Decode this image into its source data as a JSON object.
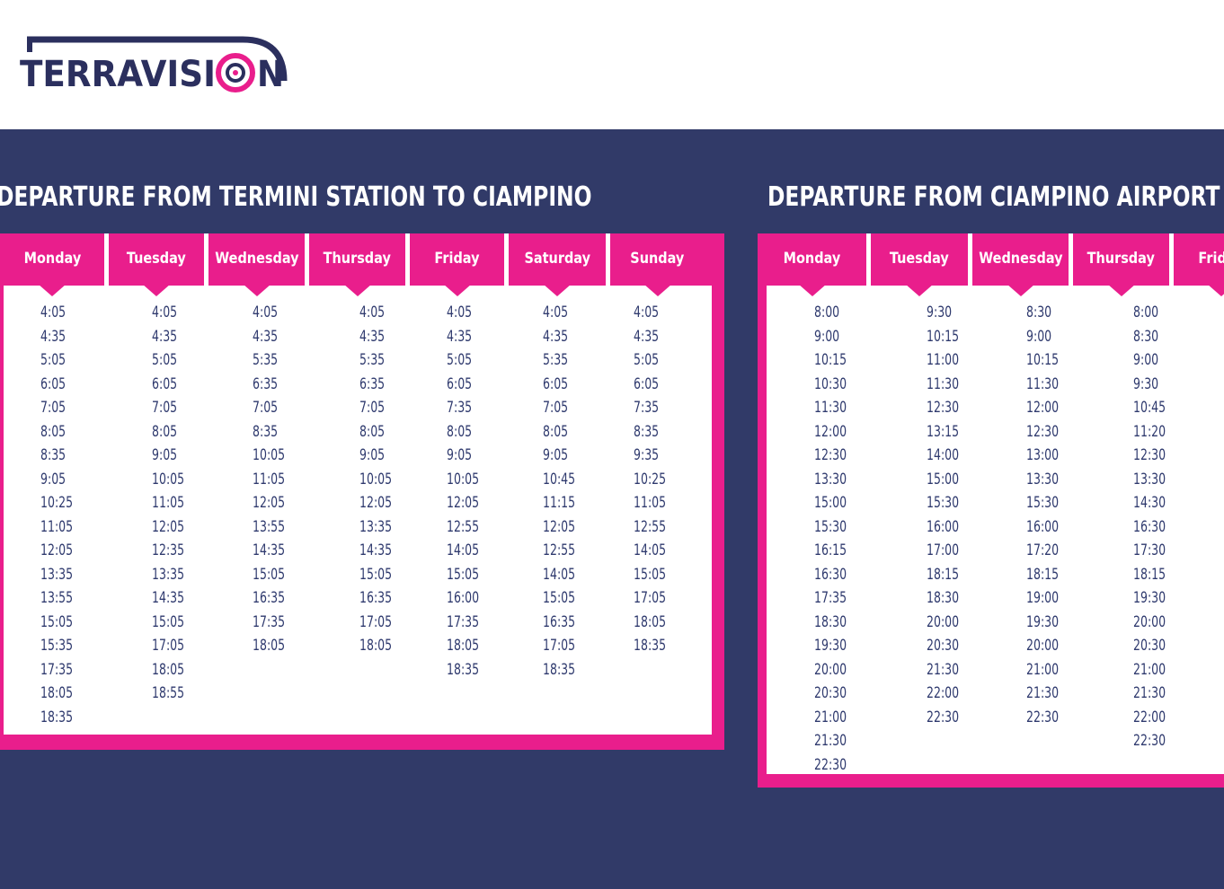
{
  "brand": {
    "name": "TERRAVISION",
    "navy": "#2b2f5e",
    "pink": "#e91e8c",
    "background_dark": "#313a68"
  },
  "sections": [
    {
      "title": "DEPARTURE FROM TERMINI STATION TO CIAMPINO",
      "days": [
        {
          "label": "Monday",
          "times": [
            "4:05",
            "4:35",
            "5:05",
            "6:05",
            "7:05",
            "8:05",
            "8:35",
            "9:05",
            "10:25",
            "11:05",
            "12:05",
            "13:35",
            "13:55",
            "15:05",
            "15:35",
            "17:35",
            "18:05",
            "18:35"
          ]
        },
        {
          "label": "Tuesday",
          "times": [
            "4:05",
            "4:35",
            "5:05",
            "6:05",
            "7:05",
            "8:05",
            "9:05",
            "10:05",
            "11:05",
            "12:05",
            "12:35",
            "13:35",
            "14:35",
            "15:05",
            "17:05",
            "18:05",
            "18:55"
          ]
        },
        {
          "label": "Wednesday",
          "times": [
            "4:05",
            "4:35",
            "5:35",
            "6:35",
            "7:05",
            "8:35",
            "10:05",
            "11:05",
            "12:05",
            "13:55",
            "14:35",
            "15:05",
            "16:35",
            "17:35",
            "18:05"
          ]
        },
        {
          "label": "Thursday",
          "times": [
            "4:05",
            "4:35",
            "5:35",
            "6:35",
            "7:05",
            "8:05",
            "9:05",
            "10:05",
            "12:05",
            "13:35",
            "14:35",
            "15:05",
            "16:35",
            "17:05",
            "18:05"
          ]
        },
        {
          "label": "Friday",
          "times": [
            "4:05",
            "4:35",
            "5:05",
            "6:05",
            "7:35",
            "8:05",
            "9:05",
            "10:05",
            "12:05",
            "12:55",
            "14:05",
            "15:05",
            "16:00",
            "17:35",
            "18:05",
            "18:35"
          ]
        },
        {
          "label": "Saturday",
          "times": [
            "4:05",
            "4:35",
            "5:35",
            "6:05",
            "7:05",
            "8:05",
            "9:05",
            "10:45",
            "11:15",
            "12:05",
            "12:55",
            "14:05",
            "15:05",
            "16:35",
            "17:05",
            "18:35"
          ]
        },
        {
          "label": "Sunday",
          "times": [
            "4:05",
            "4:35",
            "5:05",
            "6:05",
            "7:35",
            "8:35",
            "9:35",
            "10:25",
            "11:05",
            "12:55",
            "14:05",
            "15:05",
            "17:05",
            "18:05",
            "18:35"
          ]
        }
      ]
    },
    {
      "title": "DEPARTURE FROM CIAMPINO AIRPORT TO TERMINI",
      "days": [
        {
          "label": "Monday",
          "times": [
            "8:00",
            "9:00",
            "10:15",
            "10:30",
            "11:30",
            "12:00",
            "12:30",
            "13:30",
            "15:00",
            "15:30",
            "16:15",
            "16:30",
            "17:35",
            "18:30",
            "19:30",
            "20:00",
            "20:30",
            "21:00",
            "21:30",
            "22:30"
          ]
        },
        {
          "label": "Tuesday",
          "times": [
            "9:30",
            "10:15",
            "11:00",
            "11:30",
            "12:30",
            "13:15",
            "14:00",
            "15:00",
            "15:30",
            "16:00",
            "17:00",
            "18:15",
            "18:30",
            "20:00",
            "20:30",
            "21:30",
            "22:00",
            "22:30"
          ]
        },
        {
          "label": "Wednesday",
          "times": [
            "8:30",
            "9:00",
            "10:15",
            "11:30",
            "12:00",
            "12:30",
            "13:00",
            "13:30",
            "15:30",
            "16:00",
            "17:20",
            "18:15",
            "19:00",
            "19:30",
            "20:00",
            "21:00",
            "21:30",
            "22:30"
          ]
        },
        {
          "label": "Thursday",
          "times": [
            "8:00",
            "8:30",
            "9:00",
            "9:30",
            "10:45",
            "11:20",
            "12:30",
            "13:30",
            "14:30",
            "16:30",
            "17:30",
            "18:15",
            "19:30",
            "20:00",
            "20:30",
            "21:00",
            "21:30",
            "22:00",
            "22:30"
          ]
        },
        {
          "label": "Friday",
          "times": []
        }
      ]
    }
  ]
}
